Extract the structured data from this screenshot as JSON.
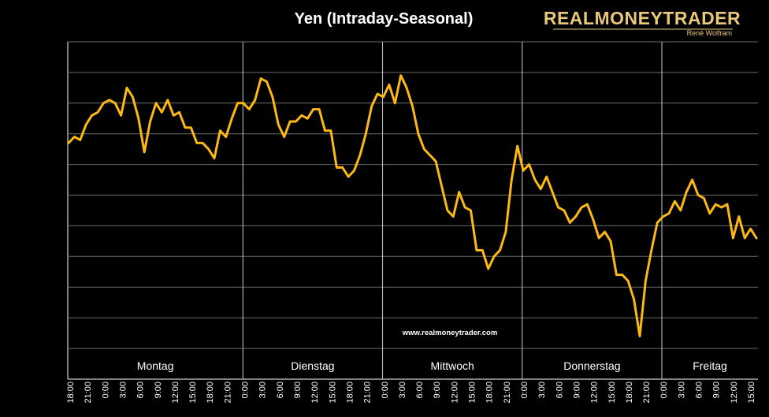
{
  "chart_data": {
    "type": "line",
    "title": "Yen (Intraday-Seasonal)",
    "brand": {
      "name": "REALMONEYTRADER",
      "author": "René Wolfram"
    },
    "watermark": "www.realmoneytrader.com",
    "grid": true,
    "line_color": "#FDB913",
    "day_labels": [
      "Montag",
      "Dienstag",
      "Mittwoch",
      "Donnerstag",
      "Freitag"
    ],
    "x_tick_labels": [
      "18:00",
      "21:00",
      "0:00",
      "3:00",
      "6:00",
      "9:00",
      "12:00",
      "15:00",
      "18:00",
      "21:00",
      "0:00",
      "3:00",
      "6:00",
      "9:00",
      "12:00",
      "15:00",
      "18:00",
      "21:00",
      "0:00",
      "3:00",
      "6:00",
      "9:00",
      "12:00",
      "15:00",
      "18:00",
      "21:00",
      "0:00",
      "3:00",
      "6:00",
      "9:00",
      "12:00",
      "15:00",
      "18:00",
      "21:00",
      "0:00",
      "3:00",
      "6:00",
      "9:00",
      "12:00",
      "15:00"
    ],
    "y_gridlines": 10,
    "ylim": [
      0,
      10
    ],
    "values": [
      6.7,
      6.9,
      6.8,
      7.3,
      7.6,
      7.7,
      8.0,
      8.1,
      8.0,
      7.6,
      8.5,
      8.2,
      7.5,
      6.4,
      7.4,
      8.0,
      7.7,
      8.1,
      7.6,
      7.7,
      7.2,
      7.2,
      6.7,
      6.7,
      6.5,
      6.2,
      7.1,
      6.9,
      7.5,
      8.0,
      8.0,
      7.8,
      8.1,
      8.8,
      8.7,
      8.2,
      7.3,
      6.9,
      7.4,
      7.4,
      7.6,
      7.5,
      7.8,
      7.8,
      7.1,
      7.1,
      5.9,
      5.9,
      5.6,
      5.8,
      6.3,
      7.0,
      7.9,
      8.3,
      8.2,
      8.6,
      8.0,
      8.9,
      8.5,
      7.9,
      7.0,
      6.5,
      6.3,
      6.1,
      5.3,
      4.5,
      4.3,
      5.1,
      4.6,
      4.5,
      3.2,
      3.2,
      2.6,
      3.0,
      3.2,
      3.8,
      5.5,
      6.6,
      5.8,
      6.0,
      5.5,
      5.2,
      5.6,
      5.1,
      4.6,
      4.5,
      4.1,
      4.3,
      4.6,
      4.7,
      4.2,
      3.6,
      3.8,
      3.5,
      2.4,
      2.4,
      2.2,
      1.6,
      0.4,
      2.2,
      3.2,
      4.1,
      4.3,
      4.4,
      4.8,
      4.5,
      5.1,
      5.5,
      5.0,
      4.9,
      4.4,
      4.7,
      4.6,
      4.7,
      3.6,
      4.3,
      3.6,
      3.9,
      3.6
    ]
  }
}
